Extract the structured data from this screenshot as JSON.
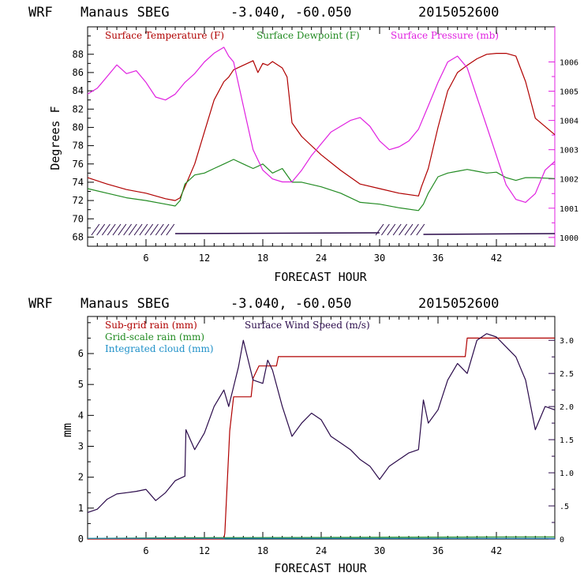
{
  "header": {
    "model": "WRF",
    "station": "Manaus SBEG",
    "coords": "-3.040, -60.050",
    "init": "2015052600"
  },
  "colors": {
    "temperature": "#b00000",
    "dewpoint": "#228b22",
    "pressure": "#e020e0",
    "subgrid_rain": "#b00000",
    "grid_rain": "#228b22",
    "cloud": "#1e90c8",
    "wind": "#2a0a4a",
    "frame_right_top": "#e020e0",
    "frame_right_bottom": "#2a0a4a"
  },
  "chart_data": [
    {
      "type": "line",
      "xlabel": "FORECAST HOUR",
      "ylabel": "Degrees F",
      "y2label": "",
      "xlim": [
        0,
        48
      ],
      "ylim": [
        67,
        91
      ],
      "y2lim": [
        999.7,
        1007.2
      ],
      "xticks": [
        "6",
        "12",
        "18",
        "24",
        "30",
        "36",
        "42"
      ],
      "xtick_values": [
        6,
        12,
        18,
        24,
        30,
        36,
        42
      ],
      "yticks": [
        "68",
        "70",
        "72",
        "74",
        "76",
        "78",
        "80",
        "82",
        "84",
        "86",
        "88"
      ],
      "ytick_values": [
        68,
        70,
        72,
        74,
        76,
        78,
        80,
        82,
        84,
        86,
        88
      ],
      "y2ticks": [
        "1000",
        "1001",
        "1002",
        "1003",
        "1004",
        "1005",
        "1006"
      ],
      "y2tick_values": [
        1000,
        1001,
        1002,
        1003,
        1004,
        1005,
        1006
      ],
      "legend": [
        "Surface Temperature (F)",
        "Surface Dewpoint (F)",
        "Surface Pressure (mb)"
      ],
      "legend_placement": "top",
      "series": [
        {
          "name": "Surface Temperature (F)",
          "axis": "left",
          "x": [
            0,
            2,
            4,
            6,
            8,
            9,
            9.5,
            10,
            11,
            12,
            13,
            14,
            14.5,
            15,
            16,
            17,
            17.5,
            18,
            18.5,
            19,
            20,
            20.5,
            21,
            22,
            24,
            26,
            28,
            30,
            32,
            34,
            34.3,
            35,
            36,
            37,
            38,
            39,
            40,
            41,
            42,
            43,
            44,
            45,
            46,
            48
          ],
          "y": [
            74.5,
            73.8,
            73.2,
            72.8,
            72.2,
            72.0,
            72.3,
            73.5,
            76.0,
            79.5,
            83.0,
            85.0,
            85.5,
            86.3,
            86.8,
            87.3,
            86.0,
            87.0,
            86.8,
            87.2,
            86.5,
            85.5,
            80.5,
            79.0,
            77.0,
            75.3,
            73.8,
            73.3,
            72.8,
            72.5,
            73.5,
            75.5,
            80.0,
            84.0,
            86.0,
            86.8,
            87.5,
            88.0,
            88.1,
            88.1,
            87.8,
            85.0,
            81.0,
            79.2
          ]
        },
        {
          "name": "Surface Dewpoint (F)",
          "axis": "left",
          "x": [
            0,
            2,
            4,
            6,
            8,
            9,
            9.5,
            10,
            11,
            12,
            13,
            14,
            15,
            16,
            17,
            18,
            19,
            20,
            21,
            22,
            24,
            26,
            28,
            30,
            32,
            34,
            34.5,
            35,
            36,
            37,
            38,
            39,
            40,
            41,
            42,
            43,
            44,
            45,
            46,
            48
          ],
          "y": [
            73.3,
            72.8,
            72.3,
            72.0,
            71.6,
            71.4,
            72.0,
            73.8,
            74.8,
            75.0,
            75.5,
            76.0,
            76.5,
            76.0,
            75.5,
            76.0,
            75.0,
            75.5,
            74.0,
            74.0,
            73.5,
            72.8,
            71.8,
            71.6,
            71.2,
            70.9,
            71.6,
            72.8,
            74.6,
            75.0,
            75.2,
            75.4,
            75.2,
            75.0,
            75.1,
            74.5,
            74.2,
            74.5,
            74.5,
            74.4
          ]
        },
        {
          "name": "Surface Pressure (mb)",
          "axis": "right",
          "x": [
            0,
            1,
            2,
            3,
            4,
            5,
            6,
            7,
            8,
            9,
            10,
            11,
            12,
            13,
            14,
            14.5,
            15,
            16,
            17,
            18,
            19,
            20,
            21,
            22,
            23,
            24,
            25,
            26,
            27,
            28,
            29,
            30,
            31,
            32,
            33,
            34,
            35,
            36,
            37,
            38,
            39,
            40,
            41,
            42,
            43,
            44,
            45,
            46,
            47,
            48
          ],
          "y": [
            1004.9,
            1005.1,
            1005.5,
            1005.9,
            1005.6,
            1005.7,
            1005.3,
            1004.8,
            1004.7,
            1004.9,
            1005.3,
            1005.6,
            1006.0,
            1006.3,
            1006.5,
            1006.2,
            1006.0,
            1004.5,
            1003.0,
            1002.3,
            1002.0,
            1001.9,
            1001.9,
            1002.3,
            1002.8,
            1003.2,
            1003.6,
            1003.8,
            1004.0,
            1004.1,
            1003.8,
            1003.3,
            1003.0,
            1003.1,
            1003.3,
            1003.7,
            1004.5,
            1005.3,
            1006.0,
            1006.2,
            1005.8,
            1004.8,
            1003.8,
            1002.8,
            1001.8,
            1001.3,
            1001.2,
            1001.5,
            1002.3,
            1002.6
          ]
        }
      ],
      "wind_barbs": "bottom row"
    },
    {
      "type": "line",
      "xlabel": "FORECAST HOUR",
      "ylabel": "mm",
      "y2label": "",
      "xlim": [
        0,
        48
      ],
      "ylim": [
        0,
        7.2
      ],
      "y2lim": [
        0,
        3.36
      ],
      "xticks": [
        "6",
        "12",
        "18",
        "24",
        "30",
        "36",
        "42"
      ],
      "xtick_values": [
        6,
        12,
        18,
        24,
        30,
        36,
        42
      ],
      "yticks": [
        "0",
        "1",
        "2",
        "3",
        "4",
        "5",
        "6"
      ],
      "ytick_values": [
        0,
        1,
        2,
        3,
        4,
        5,
        6
      ],
      "y2ticks": [
        "0",
        ".5",
        "1.0",
        "1.5",
        "2.0",
        "2.5",
        "3.0"
      ],
      "y2tick_values": [
        0,
        0.5,
        1.0,
        1.5,
        2.0,
        2.5,
        3.0
      ],
      "legend": [
        "Sub-grid rain (mm)",
        "Surface Wind Speed (m/s)",
        "Grid-scale rain (mm)",
        "Integrated cloud (mm)"
      ],
      "legend_placement": "top-left",
      "series": [
        {
          "name": "Sub-grid rain (mm)",
          "axis": "left",
          "x": [
            0,
            14.0,
            14.1,
            14.6,
            15.0,
            16.8,
            17.0,
            17.6,
            18.0,
            19.4,
            19.6,
            38.8,
            39.0,
            48
          ],
          "y": [
            0,
            0,
            0.2,
            3.5,
            4.6,
            4.6,
            5.2,
            5.6,
            5.6,
            5.6,
            5.9,
            5.9,
            6.5,
            6.5
          ]
        },
        {
          "name": "Grid-scale rain (mm)",
          "axis": "left",
          "x": [
            0,
            10,
            48
          ],
          "y": [
            0.02,
            0.04,
            0.07
          ]
        },
        {
          "name": "Integrated cloud (mm)",
          "axis": "left",
          "x": [
            0,
            48
          ],
          "y": [
            0.02,
            0.02
          ]
        },
        {
          "name": "Surface Wind Speed (m/s)",
          "axis": "right",
          "x": [
            0,
            1,
            2,
            3,
            4,
            5,
            6,
            7,
            8,
            9,
            10,
            10.1,
            11,
            12,
            13,
            14,
            14.5,
            15,
            15.5,
            16,
            17,
            18,
            18.5,
            19,
            20,
            21,
            22,
            23,
            24,
            25,
            26,
            27,
            28,
            29,
            30,
            31,
            32,
            33,
            34,
            34.5,
            35,
            36,
            37,
            38,
            39,
            40,
            41,
            42,
            43,
            44,
            45,
            46,
            47,
            48
          ],
          "y": [
            0.4,
            0.45,
            0.6,
            0.68,
            0.7,
            0.72,
            0.75,
            0.58,
            0.7,
            0.88,
            0.95,
            1.65,
            1.35,
            1.6,
            2.0,
            2.25,
            2.0,
            2.3,
            2.6,
            3.0,
            2.4,
            2.35,
            2.7,
            2.55,
            2.0,
            1.55,
            1.75,
            1.9,
            1.8,
            1.55,
            1.45,
            1.35,
            1.2,
            1.1,
            0.9,
            1.1,
            1.2,
            1.3,
            1.35,
            2.1,
            1.75,
            1.95,
            2.4,
            2.65,
            2.5,
            3.0,
            3.1,
            3.05,
            2.9,
            2.75,
            2.4,
            1.65,
            2.0,
            1.95
          ]
        }
      ]
    }
  ]
}
